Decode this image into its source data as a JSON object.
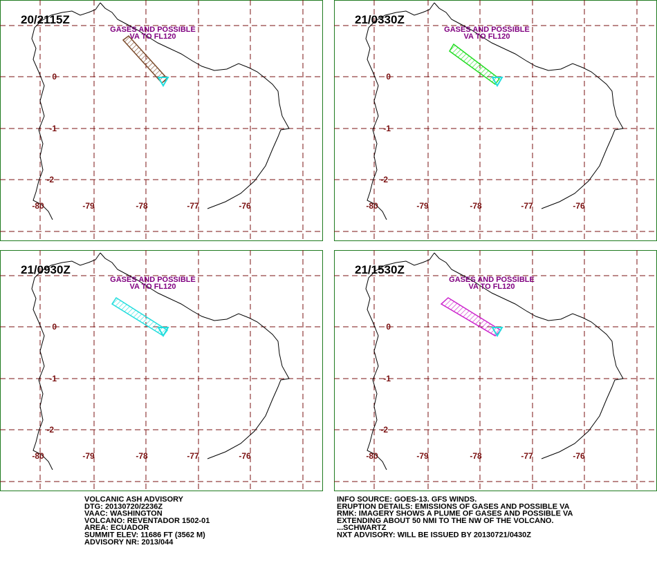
{
  "panels": [
    {
      "time": "20/2115Z",
      "annotation": [
        "GASES AND POSSIBLE",
        "VA TO FL120"
      ],
      "plume_color": "#7a4a2a"
    },
    {
      "time": "21/0330Z",
      "annotation": [
        "GASES AND POSSIBLE",
        "VA TO FL120"
      ],
      "plume_color": "#22dd22"
    },
    {
      "time": "21/0930Z",
      "annotation": [
        "GASES AND POSSIBLE",
        "VA TO FL120"
      ],
      "plume_color": "#22dddd"
    },
    {
      "time": "21/1530Z",
      "annotation": [
        "GASES AND POSSIBLE",
        "VA TO FL120"
      ],
      "plume_color": "#cc22cc"
    }
  ],
  "lat_labels": [
    "0",
    "-1",
    "-2"
  ],
  "lon_labels": [
    "-80",
    "-79",
    "-78",
    "-77",
    "-76"
  ],
  "advisory_left": [
    "VOLCANIC ASH ADVISORY",
    "DTG: 20130720/2236Z",
    "VAAC: WASHINGTON",
    "VOLCANO: REVENTADOR 1502-01",
    "AREA: ECUADOR",
    "SUMMIT ELEV: 11686 FT (3562 M)",
    "ADVISORY NR: 2013/044"
  ],
  "advisory_right": [
    "INFO SOURCE: GOES-13. GFS WINDS.",
    "ERUPTION DETAILS: EMISSIONS OF GASES AND POSSIBLE VA",
    "RMK: IMAGERY SHOWS A PLUME OF GASES AND POSSIBLE VA",
    "EXTENDING ABOUT 50 NMI TO THE NW OF THE VOLCANO.",
    "...SCHWARTZ",
    "NXT ADVISORY: WILL BE ISSUED BY 20130721/0430Z"
  ]
}
